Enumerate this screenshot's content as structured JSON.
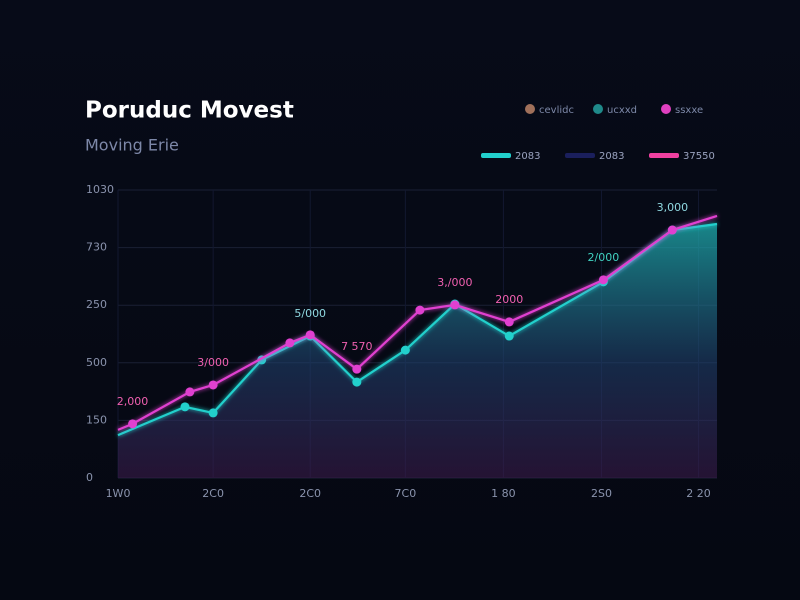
{
  "chart_data": {
    "type": "line",
    "title": "Poruduc Movest",
    "subtitle": "Moving Erie",
    "legend": [
      {
        "label": "cevlidc",
        "color": "#a0705a"
      },
      {
        "label": "ucxxd",
        "color": "#1f8a8a"
      },
      {
        "label": "ssxxe",
        "color": "#e040c0"
      }
    ],
    "keys": [
      {
        "label": "2083",
        "color": "#22d0cc"
      },
      {
        "label": "2083",
        "color": "#1a1f5c"
      },
      {
        "label": "37550",
        "color": "#f040a0"
      }
    ],
    "xlim": [
      0,
      6.17
    ],
    "xticks": [
      {
        "value": 0,
        "label": "1W0"
      },
      {
        "value": 0.98,
        "label": "2C0"
      },
      {
        "value": 1.98,
        "label": "2C0"
      },
      {
        "value": 2.96,
        "label": "7C0"
      },
      {
        "value": 3.97,
        "label": "1 80"
      },
      {
        "value": 4.98,
        "label": "2S0"
      },
      {
        "value": 5.98,
        "label": "2 20"
      }
    ],
    "ylim": [
      0,
      1000
    ],
    "yticks": [
      0,
      {
        "value": 200,
        "label": "150"
      },
      {
        "value": 400,
        "label": "500"
      },
      {
        "value": 600,
        "label": "250"
      },
      {
        "value": 800,
        "label": "730"
      },
      {
        "value": 1000,
        "label": "1030"
      }
    ],
    "grid": true,
    "series": [
      {
        "color": "#22d0cc",
        "area": true,
        "x": [
          0,
          0.69,
          0.98,
          1.48,
          1.98,
          2.46,
          2.96,
          3.47,
          4.03,
          5.0,
          5.71,
          6.17
        ],
        "values": [
          149,
          247,
          226,
          410,
          493,
          333,
          444,
          604,
          493,
          681,
          861,
          882
        ]
      },
      {
        "color": "#e040d0",
        "area": false,
        "x": [
          0,
          0.15,
          0.74,
          0.98,
          1.77,
          1.98,
          2.46,
          3.11,
          3.47,
          4.03,
          5.0,
          5.71,
          6.17
        ],
        "values": [
          167,
          188,
          299,
          323,
          469,
          497,
          378,
          583,
          601,
          542,
          688,
          861,
          910
        ]
      }
    ],
    "annotations": [
      {
        "text": "2,000",
        "x": 0.15,
        "y": 188,
        "color": "#f060b0"
      },
      {
        "text": "3/000",
        "x": 0.98,
        "y": 323,
        "color": "#f060b0"
      },
      {
        "text": "5/000",
        "x": 1.98,
        "y": 493,
        "color": "#8fd8e0"
      },
      {
        "text": "7 570",
        "x": 2.46,
        "y": 378,
        "color": "#f060b0"
      },
      {
        "text": "3,/000",
        "x": 3.47,
        "y": 601,
        "color": "#f060b0"
      },
      {
        "text": "2000",
        "x": 4.03,
        "y": 542,
        "color": "#f060b0"
      },
      {
        "text": "2/000",
        "x": 5.0,
        "y": 688,
        "color": "#40d0c0"
      },
      {
        "text": "3,000",
        "x": 5.71,
        "y": 861,
        "color": "#8fd8e0"
      }
    ]
  }
}
